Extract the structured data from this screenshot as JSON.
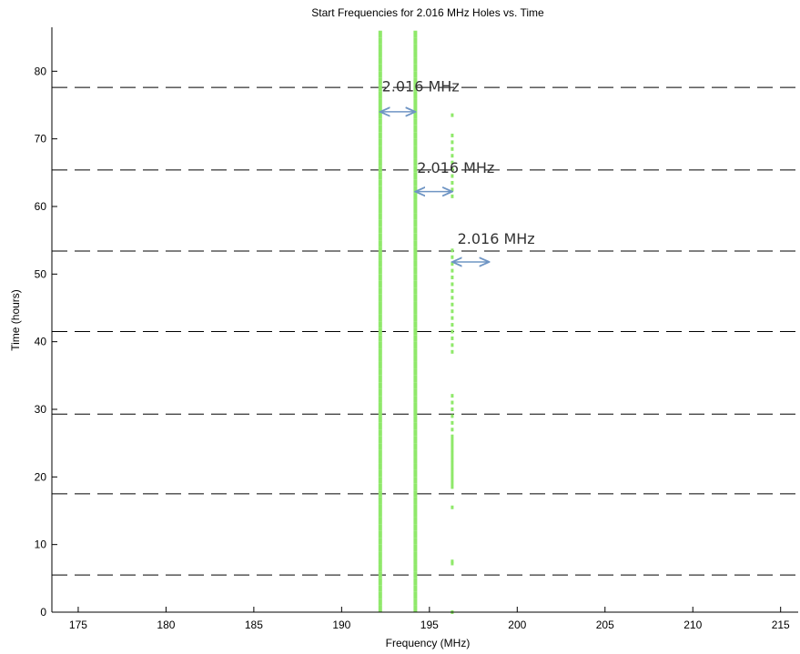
{
  "chart_data": {
    "type": "scatter",
    "title": "Start Frequencies for 2.016 MHz Holes vs. Time",
    "xlabel": "Frequency (MHz)",
    "ylabel": "Time (hours)",
    "xlim": [
      173.5,
      216
    ],
    "ylim": [
      0,
      86.5
    ],
    "xticks": [
      175,
      180,
      185,
      190,
      195,
      200,
      205,
      210,
      215
    ],
    "yticks": [
      0,
      10,
      20,
      30,
      40,
      50,
      60,
      70,
      80
    ],
    "grid": false,
    "colors": {
      "data": "#8fe86a",
      "dashed": "#000000",
      "arrow": "#6f95c4",
      "annotation_text": "#333333"
    },
    "series": [
      {
        "marker": "dot",
        "x": [
          192.2,
          192.2,
          192.2,
          192.2,
          192.2,
          192.2,
          192.2,
          192.2,
          192.2,
          192.2,
          192.2,
          192.2,
          192.2,
          192.2,
          192.2,
          192.2,
          192.2,
          192.2,
          192.2,
          192.2,
          192.2,
          192.2,
          192.2,
          192.2,
          192.2,
          192.2,
          192.2,
          192.2,
          192.2,
          192.2,
          192.2,
          192.2,
          192.2,
          192.2,
          192.2,
          192.2,
          192.2,
          192.2,
          192.2,
          192.2,
          192.2,
          192.2,
          192.2,
          192.2,
          192.2,
          192.2,
          192.2,
          192.2,
          192.2,
          192.2,
          192.2,
          192.2,
          192.2,
          192.2,
          192.2,
          192.2,
          192.2,
          192.2,
          192.2,
          192.2,
          192.2,
          192.2,
          192.2,
          192.2,
          192.2,
          192.2,
          192.2,
          192.2,
          192.2,
          192.2,
          192.2,
          192.2,
          192.2,
          192.2,
          192.2,
          192.2,
          192.2,
          192.2,
          192.2,
          192.2,
          192.2,
          192.2,
          192.2,
          192.2,
          192.2,
          192.2,
          192.2
        ],
        "y": [
          0,
          1,
          2,
          3,
          4,
          5,
          6,
          7,
          8,
          9,
          10,
          11,
          12,
          13,
          14,
          15,
          16,
          17,
          18,
          19,
          20,
          21,
          22,
          23,
          24,
          25,
          26,
          27,
          28,
          29,
          30,
          31,
          32,
          33,
          34,
          35,
          36,
          37,
          38,
          39,
          40,
          41,
          42,
          43,
          44,
          45,
          46,
          47,
          48,
          49,
          50,
          51,
          52,
          53,
          54,
          55,
          56,
          57,
          58,
          59,
          60,
          61,
          62,
          63,
          64,
          65,
          66,
          67,
          68,
          69,
          70,
          71,
          72,
          73,
          74,
          75,
          76,
          77,
          78,
          79,
          80,
          81,
          82,
          83,
          84,
          85,
          86
        ]
      },
      {
        "marker": "dot",
        "x": [
          194.2,
          194.2,
          194.2,
          194.2,
          194.2,
          194.2,
          194.2,
          194.2,
          194.2,
          194.2,
          194.2,
          194.2,
          194.2,
          194.2,
          194.2,
          194.2,
          194.2,
          194.2,
          194.2,
          194.2,
          194.2,
          194.2,
          194.2,
          194.2,
          194.2,
          194.2,
          194.2,
          194.2,
          194.2,
          194.2,
          194.2,
          194.2,
          194.2,
          194.2,
          194.2,
          194.2,
          194.2,
          194.2,
          194.2,
          194.2,
          194.2,
          194.2,
          194.2,
          194.2,
          194.2,
          194.2,
          194.2,
          194.2,
          194.2,
          194.2,
          194.2,
          194.2,
          194.2,
          194.2,
          194.2,
          194.2,
          194.2,
          194.2,
          194.2,
          194.2,
          194.2,
          194.2,
          194.2,
          194.2,
          194.2,
          194.2,
          194.2,
          194.2,
          194.2,
          194.2,
          194.2,
          194.2,
          194.2,
          194.2,
          194.2,
          194.2,
          194.2,
          194.2,
          194.2,
          194.2,
          194.2,
          194.2,
          194.2,
          194.2,
          194.2,
          194.2,
          194.2
        ],
        "y": [
          0,
          1,
          2,
          3,
          4,
          5,
          6,
          7,
          8,
          9,
          10,
          11,
          12,
          13,
          14,
          15,
          16,
          17,
          18,
          19,
          20,
          21,
          22,
          23,
          24,
          25,
          26,
          27,
          28,
          29,
          30,
          31,
          32,
          33,
          34,
          35,
          36,
          37,
          38,
          39,
          40,
          41,
          42,
          43,
          44,
          45,
          46,
          47,
          48,
          49,
          50,
          51,
          52,
          53,
          54,
          55,
          56,
          57,
          58,
          59,
          60,
          61,
          62,
          63,
          64,
          65,
          66,
          67,
          68,
          69,
          70,
          71,
          72,
          73,
          74,
          75,
          76,
          77,
          78,
          79,
          80,
          81,
          82,
          83,
          84,
          85,
          86
        ]
      },
      {
        "marker": "dot",
        "x": [
          196.3,
          196.3,
          196.3,
          196.3,
          196.3,
          196.3,
          196.3,
          196.3,
          196.3,
          196.3,
          196.3,
          196.3,
          196.3,
          196.3,
          196.3,
          196.3,
          196.3,
          196.3,
          196.3,
          196.3,
          196.3,
          196.3,
          196.3,
          196.3,
          196.3,
          196.3,
          196.3,
          196.3,
          196.3,
          196.3,
          196.3,
          196.3,
          196.3,
          196.3,
          196.3,
          196.3,
          196.3,
          196.3,
          196.3,
          196.3,
          196.3,
          196.3,
          196.3,
          196.3,
          196.3,
          196.3,
          196.3,
          196.3
        ],
        "y": [
          0,
          7.2,
          7.5,
          15.5,
          18.5,
          19,
          19.5,
          20,
          20.5,
          21,
          21.5,
          22,
          22.5,
          23,
          23.5,
          24,
          24.5,
          25,
          25.5,
          26,
          27,
          28,
          29,
          30,
          31,
          32,
          38.5,
          39.5,
          40.5,
          41.5,
          42.5,
          43.5,
          44.5,
          45.5,
          46.5,
          47.5,
          48.5,
          49.5,
          50.5,
          51.5,
          52.5,
          53.5,
          61.5,
          62.5,
          63.5,
          64.5,
          65.5,
          66.5
        ]
      }
    ],
    "extra_points": {
      "x": [
        196.3,
        196.3,
        196.3,
        196.3,
        196.3
      ],
      "y": [
        67.5,
        68.5,
        69.5,
        70.5,
        73.5
      ]
    },
    "horizontal_dashed_lines": [
      5.5,
      17.5,
      29.3,
      41.5,
      53.4,
      65.4,
      77.6
    ],
    "annotations": [
      {
        "text": "2.016 MHz",
        "x": 194.5,
        "y": 77,
        "arrow_x": [
          192.2,
          194.2
        ],
        "arrow_y": 74
      },
      {
        "text": "2.016 MHz",
        "x": 196.5,
        "y": 65,
        "arrow_x": [
          194.2,
          196.3
        ],
        "arrow_y": 62.2
      },
      {
        "text": "2.016 MHz",
        "x": 198.8,
        "y": 54.5,
        "arrow_x": [
          196.3,
          198.4
        ],
        "arrow_y": 51.8
      }
    ]
  }
}
